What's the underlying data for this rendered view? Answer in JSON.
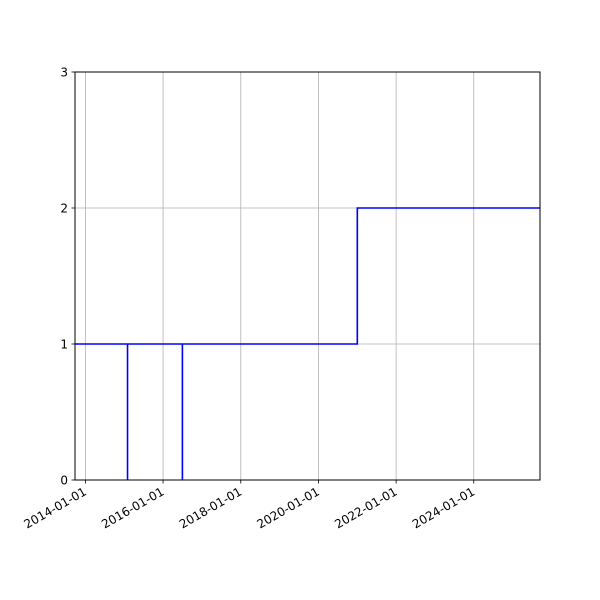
{
  "chart_data": {
    "type": "line",
    "step": "post",
    "title": "",
    "xlabel": "",
    "ylabel": "",
    "x_axis_kind": "date",
    "xlim": [
      "2013-09-25",
      "2025-09-15"
    ],
    "ylim": [
      0,
      3
    ],
    "grid": true,
    "legend": "none",
    "x_ticks": [
      "2014-01-01",
      "2016-01-01",
      "2018-01-01",
      "2020-01-01",
      "2022-01-01",
      "2024-01-01"
    ],
    "y_ticks": [
      0,
      1,
      2,
      3
    ],
    "series": [
      {
        "color": "#0000ff",
        "points": [
          {
            "x": "2013-09-25",
            "y": 1
          },
          {
            "x": "2015-02-01",
            "y": 1
          },
          {
            "x": "2015-02-01",
            "y": 0
          },
          {
            "x": "2015-02-01",
            "y": 1
          },
          {
            "x": "2016-07-01",
            "y": 1
          },
          {
            "x": "2016-07-01",
            "y": 0
          },
          {
            "x": "2016-07-01",
            "y": 1
          },
          {
            "x": "2021-01-01",
            "y": 1
          },
          {
            "x": "2021-01-01",
            "y": 2
          },
          {
            "x": "2025-09-15",
            "y": 2
          }
        ]
      }
    ],
    "colors": {
      "line": "#0000ff",
      "grid": "#b0b0b0",
      "axes": "#000000"
    }
  }
}
